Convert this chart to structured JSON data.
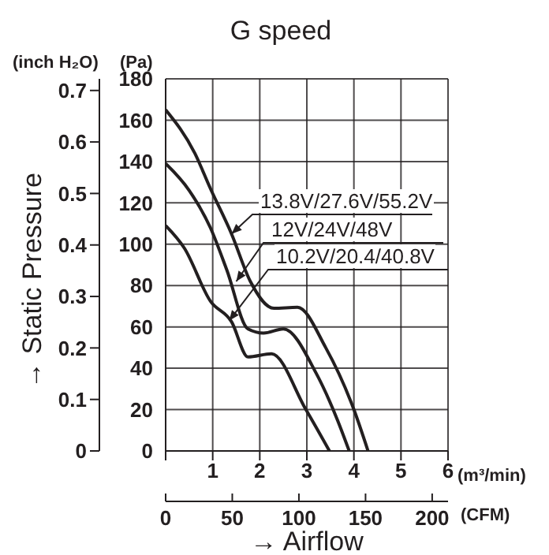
{
  "chart_data": {
    "type": "line",
    "title": "G speed",
    "xlabel": "(m³/min)",
    "x2label": "(CFM)",
    "ylabel": "(Pa)",
    "y2label": "(inch H₂O)",
    "annotations": [
      {
        "text": "13.8V/27.6V/55.2V",
        "x": 1.4,
        "y": 105
      },
      {
        "text": "12V/24V/48V",
        "x": 1.5,
        "y": 82
      },
      {
        "text": "10.2V/20.4/40.8V",
        "x": 1.35,
        "y": 63
      },
      "→ Static Pressure",
      "→ Airflow"
    ],
    "xlim": [
      0,
      6
    ],
    "xticks": [
      {
        "value": 0,
        "label": null
      },
      1,
      2,
      3,
      4,
      5,
      6
    ],
    "ylim": [
      0,
      180
    ],
    "yticks": [
      0,
      20,
      40,
      60,
      80,
      100,
      120,
      140,
      160,
      180
    ],
    "y2lim": [
      0,
      0.7226
    ],
    "y2ticks": [
      0,
      0.1,
      0.2,
      0.3,
      0.4,
      0.5,
      0.6,
      0.7
    ],
    "x2lim": [
      0,
      211.9
    ],
    "x2ticks": [
      0,
      50,
      100,
      150,
      200
    ],
    "grid": true,
    "marker": "none",
    "line_style": "solid",
    "series": [
      {
        "color": "#231f20",
        "x": [
          0,
          0.62,
          0.95,
          1.4,
          1.8,
          2.3,
          2.8,
          3.4,
          4.0,
          4.3
        ],
        "values": [
          165,
          144,
          127,
          105,
          82,
          69,
          69.5,
          50,
          20,
          0
        ]
      },
      {
        "color": "#231f20",
        "x": [
          0,
          0.5,
          0.95,
          1.3,
          1.75,
          2.08,
          2.5,
          3.2,
          3.65,
          3.9
        ],
        "values": [
          139,
          126,
          108,
          87.5,
          59,
          57,
          59,
          37.5,
          15,
          0
        ]
      },
      {
        "color": "#231f20",
        "x": [
          0,
          0.4,
          0.95,
          1.4,
          1.75,
          2.25,
          2.98,
          3.48
        ],
        "values": [
          109,
          98,
          72.5,
          62.5,
          45.5,
          47,
          20,
          0
        ]
      }
    ]
  }
}
